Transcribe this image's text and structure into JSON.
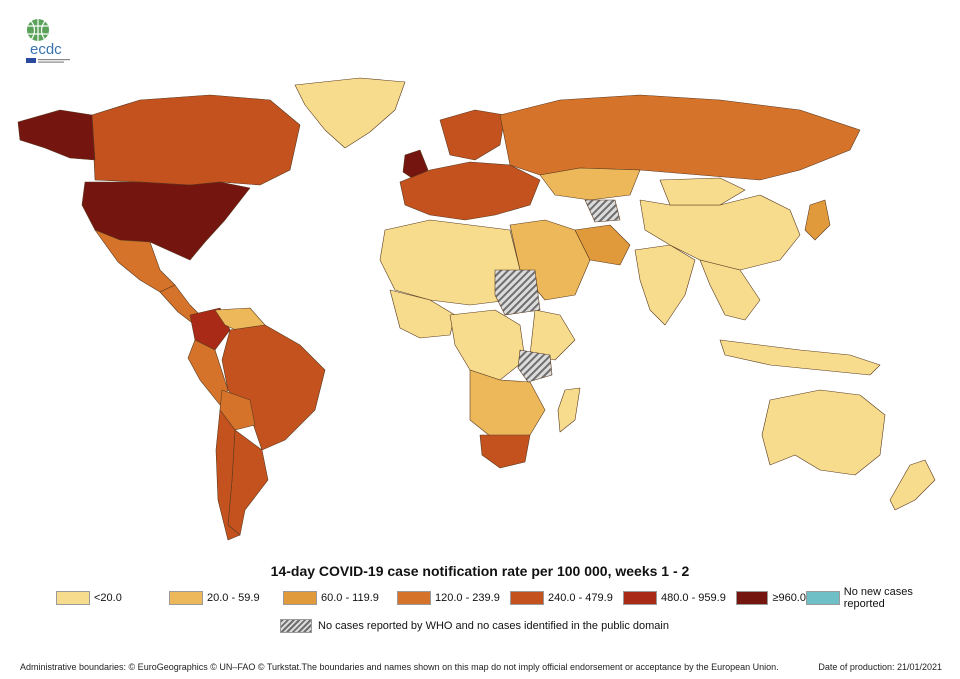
{
  "logo": {
    "text": "ecdc"
  },
  "map": {
    "title": "14-day COVID-19 case notification rate per 100 000, weeks  1 - 2",
    "legend": [
      {
        "label": "<20.0",
        "color": "#f6dc8c"
      },
      {
        "label": "20.0 - 59.9",
        "color": "#edb85a"
      },
      {
        "label": "60.0 - 119.9",
        "color": "#e19a3b"
      },
      {
        "label": "120.0 - 239.9",
        "color": "#d5732a"
      },
      {
        "label": "240.0 - 479.9",
        "color": "#c4521f"
      },
      {
        "label": "480.0 - 959.9",
        "color": "#a82a17"
      },
      {
        "label": "≥960.0",
        "color": "#741510"
      },
      {
        "label": "No new cases reported",
        "color": "#6fbfc6"
      }
    ],
    "no_data_label": "No cases reported by WHO and no cases identified in the public domain",
    "regions": [
      {
        "id": "canada",
        "category": 4
      },
      {
        "id": "usa",
        "category": 6
      },
      {
        "id": "alaska",
        "category": 6
      },
      {
        "id": "greenland",
        "category": 0
      },
      {
        "id": "mexico",
        "category": 3
      },
      {
        "id": "central-america",
        "category": 3
      },
      {
        "id": "colombia",
        "category": 5
      },
      {
        "id": "venezuela",
        "category": 1
      },
      {
        "id": "brazil",
        "category": 4
      },
      {
        "id": "peru",
        "category": 3
      },
      {
        "id": "bolivia",
        "category": 3
      },
      {
        "id": "argentina",
        "category": 4
      },
      {
        "id": "chile",
        "category": 4
      },
      {
        "id": "uk",
        "category": 6
      },
      {
        "id": "europe",
        "category": 4
      },
      {
        "id": "scandinavia",
        "category": 4
      },
      {
        "id": "russia",
        "category": 3
      },
      {
        "id": "kazakhstan",
        "category": 1
      },
      {
        "id": "middle-east",
        "category": 1
      },
      {
        "id": "iran",
        "category": 2
      },
      {
        "id": "north-africa",
        "category": 0
      },
      {
        "id": "west-africa",
        "category": 0
      },
      {
        "id": "central-africa",
        "category": 0
      },
      {
        "id": "east-africa",
        "category": 0
      },
      {
        "id": "southern-africa",
        "category": 1
      },
      {
        "id": "south-africa",
        "category": 4
      },
      {
        "id": "madagascar",
        "category": 0
      },
      {
        "id": "india",
        "category": 0
      },
      {
        "id": "china",
        "category": 0
      },
      {
        "id": "mongolia",
        "category": 0
      },
      {
        "id": "southeast-asia",
        "category": 0
      },
      {
        "id": "indonesia",
        "category": 0
      },
      {
        "id": "japan",
        "category": 2
      },
      {
        "id": "australia",
        "category": 0
      },
      {
        "id": "new-zealand",
        "category": 0
      },
      {
        "id": "sudan",
        "category": "nodata"
      },
      {
        "id": "tanzania",
        "category": "nodata"
      },
      {
        "id": "turkmenistan",
        "category": "nodata"
      }
    ]
  },
  "footer": {
    "attribution": "Administrative boundaries: © EuroGeographics © UN–FAO © Turkstat.The boundaries and names shown on this map do not imply official endorsement or acceptance by the European Union.",
    "date": "Date of production: 21/01/2021"
  }
}
